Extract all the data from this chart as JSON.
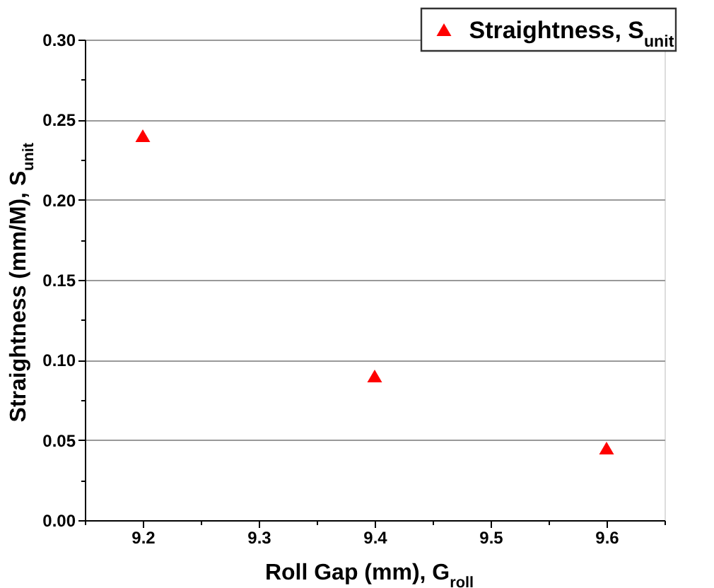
{
  "chart_data": {
    "type": "scatter",
    "xlabel": "Roll Gap (mm), G$_{roll}$",
    "ylabel": "Straightness (mm/M), S$_{unit}$",
    "x": [
      9.2,
      9.4,
      9.6
    ],
    "series": [
      {
        "name": "Straightness, S$_{unit}$",
        "color": "#ff0000",
        "values": [
          0.24,
          0.09,
          0.045
        ]
      }
    ],
    "marker": "triangle",
    "xlim": [
      9.15,
      9.65
    ],
    "ylim": [
      0,
      0.3
    ],
    "xticks": [
      {
        "value": 9.15,
        "label": null
      },
      9.2,
      {
        "value": 9.25,
        "label": null
      },
      9.3,
      {
        "value": 9.35,
        "label": null
      },
      9.4,
      {
        "value": 9.45,
        "label": null
      },
      9.5,
      {
        "value": 9.55,
        "label": null
      },
      9.6,
      {
        "value": 9.65,
        "label": null
      }
    ],
    "yticks": [
      {
        "value": 0,
        "label": "0.00"
      },
      {
        "value": 0.025,
        "label": null
      },
      {
        "value": 0.05,
        "label": "0.05"
      },
      {
        "value": 0.075,
        "label": null
      },
      {
        "value": 0.1,
        "label": "0.10"
      },
      {
        "value": 0.125,
        "label": null
      },
      {
        "value": 0.15,
        "label": "0.15"
      },
      {
        "value": 0.175,
        "label": null
      },
      {
        "value": 0.2,
        "label": "0.20"
      },
      {
        "value": 0.225,
        "label": null
      },
      {
        "value": 0.25,
        "label": "0.25"
      },
      {
        "value": 0.275,
        "label": null
      },
      {
        "value": 0.3,
        "label": "0.30"
      }
    ],
    "grid": "y",
    "legend": "top right"
  }
}
